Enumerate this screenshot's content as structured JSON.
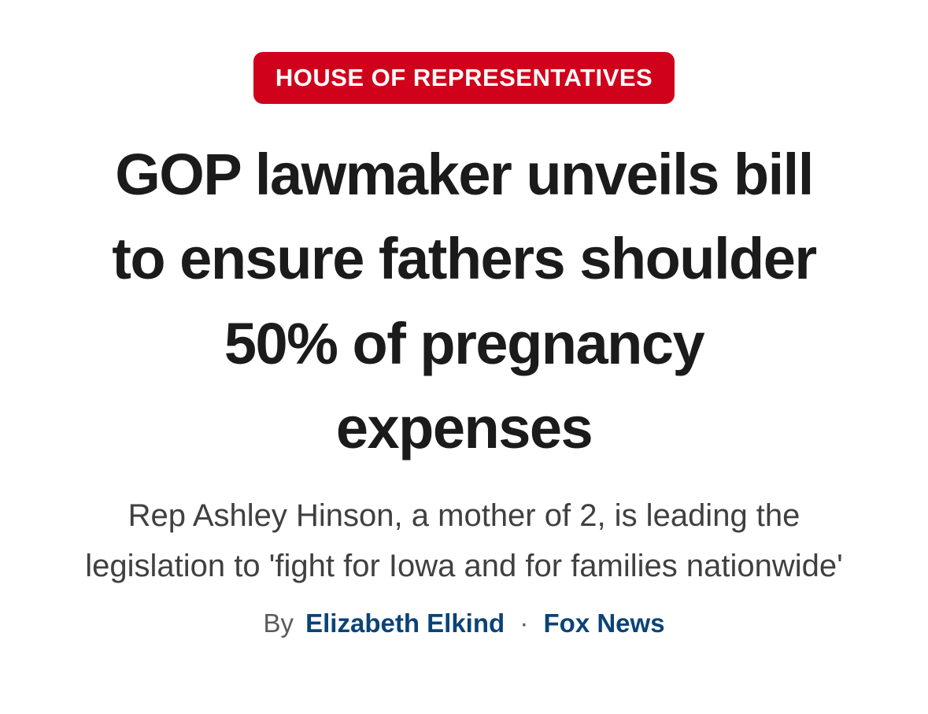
{
  "article": {
    "category_badge": "HOUSE OF REPRESENTATIVES",
    "headline": "GOP lawmaker unveils bill to ensure fathers shoulder 50% of pregnancy expenses",
    "subheadline": "Rep Ashley Hinson, a mother of 2, is leading the legislation to 'fight for Iowa and for families nationwide'",
    "byline": {
      "prefix": "By",
      "author": "Elizabeth Elkind",
      "separator": "·",
      "source": "Fox News"
    }
  },
  "colors": {
    "badge_bg": "#d0021b",
    "badge_text": "#ffffff",
    "headline_color": "#1b1b1b",
    "subheadline_color": "#404040",
    "byline_muted": "#5a5a5a",
    "link_color": "#0b4377",
    "page_bg": "#ffffff"
  }
}
